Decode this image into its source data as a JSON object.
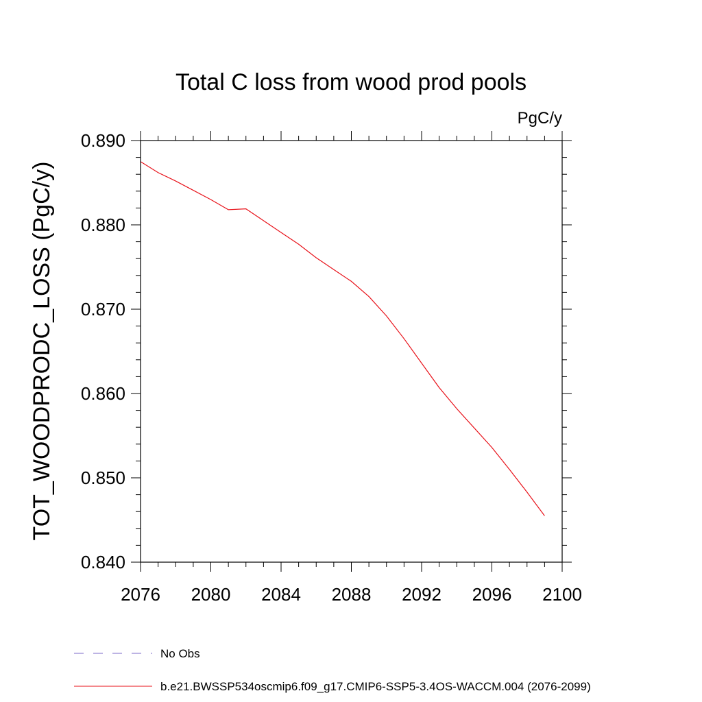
{
  "chart_data": {
    "type": "line",
    "title": "Total C loss from wood prod pools",
    "units": "PgC/y",
    "ylabel": "TOT_WOODPRODC_LOSS  (PgC/y)",
    "xlabel": "",
    "xlim": [
      2076,
      2100
    ],
    "ylim": [
      0.84,
      0.89
    ],
    "x_ticks": [
      2076,
      2080,
      2084,
      2088,
      2092,
      2096,
      2100
    ],
    "x_tick_labels": [
      "2076",
      "2080",
      "2084",
      "2088",
      "2092",
      "2096",
      "2100"
    ],
    "y_ticks": [
      0.84,
      0.85,
      0.86,
      0.87,
      0.88,
      0.89
    ],
    "y_tick_labels": [
      "0.840",
      "0.850",
      "0.860",
      "0.870",
      "0.880",
      "0.890"
    ],
    "grid": false,
    "legend_placement": "bottom",
    "series": [
      {
        "name": "No Obs",
        "color": "#7b68c8",
        "style": "dashed",
        "x": [],
        "values": []
      },
      {
        "name": "b.e21.BWSSP534oscmip6.f09_g17.CMIP6-SSP5-3.4OS-WACCM.004 (2076-2099)",
        "color": "#e8121a",
        "style": "solid",
        "x": [
          2076,
          2077,
          2078,
          2079,
          2080,
          2081,
          2082,
          2083,
          2084,
          2085,
          2086,
          2087,
          2088,
          2089,
          2090,
          2091,
          2092,
          2093,
          2094,
          2095,
          2096,
          2097,
          2098,
          2099
        ],
        "values": [
          0.8875,
          0.8862,
          0.8852,
          0.8841,
          0.883,
          0.8818,
          0.8819,
          0.8805,
          0.8791,
          0.8777,
          0.8761,
          0.8747,
          0.8733,
          0.8715,
          0.8692,
          0.8665,
          0.8636,
          0.8607,
          0.8582,
          0.8559,
          0.8536,
          0.851,
          0.8483,
          0.8455
        ]
      }
    ]
  }
}
